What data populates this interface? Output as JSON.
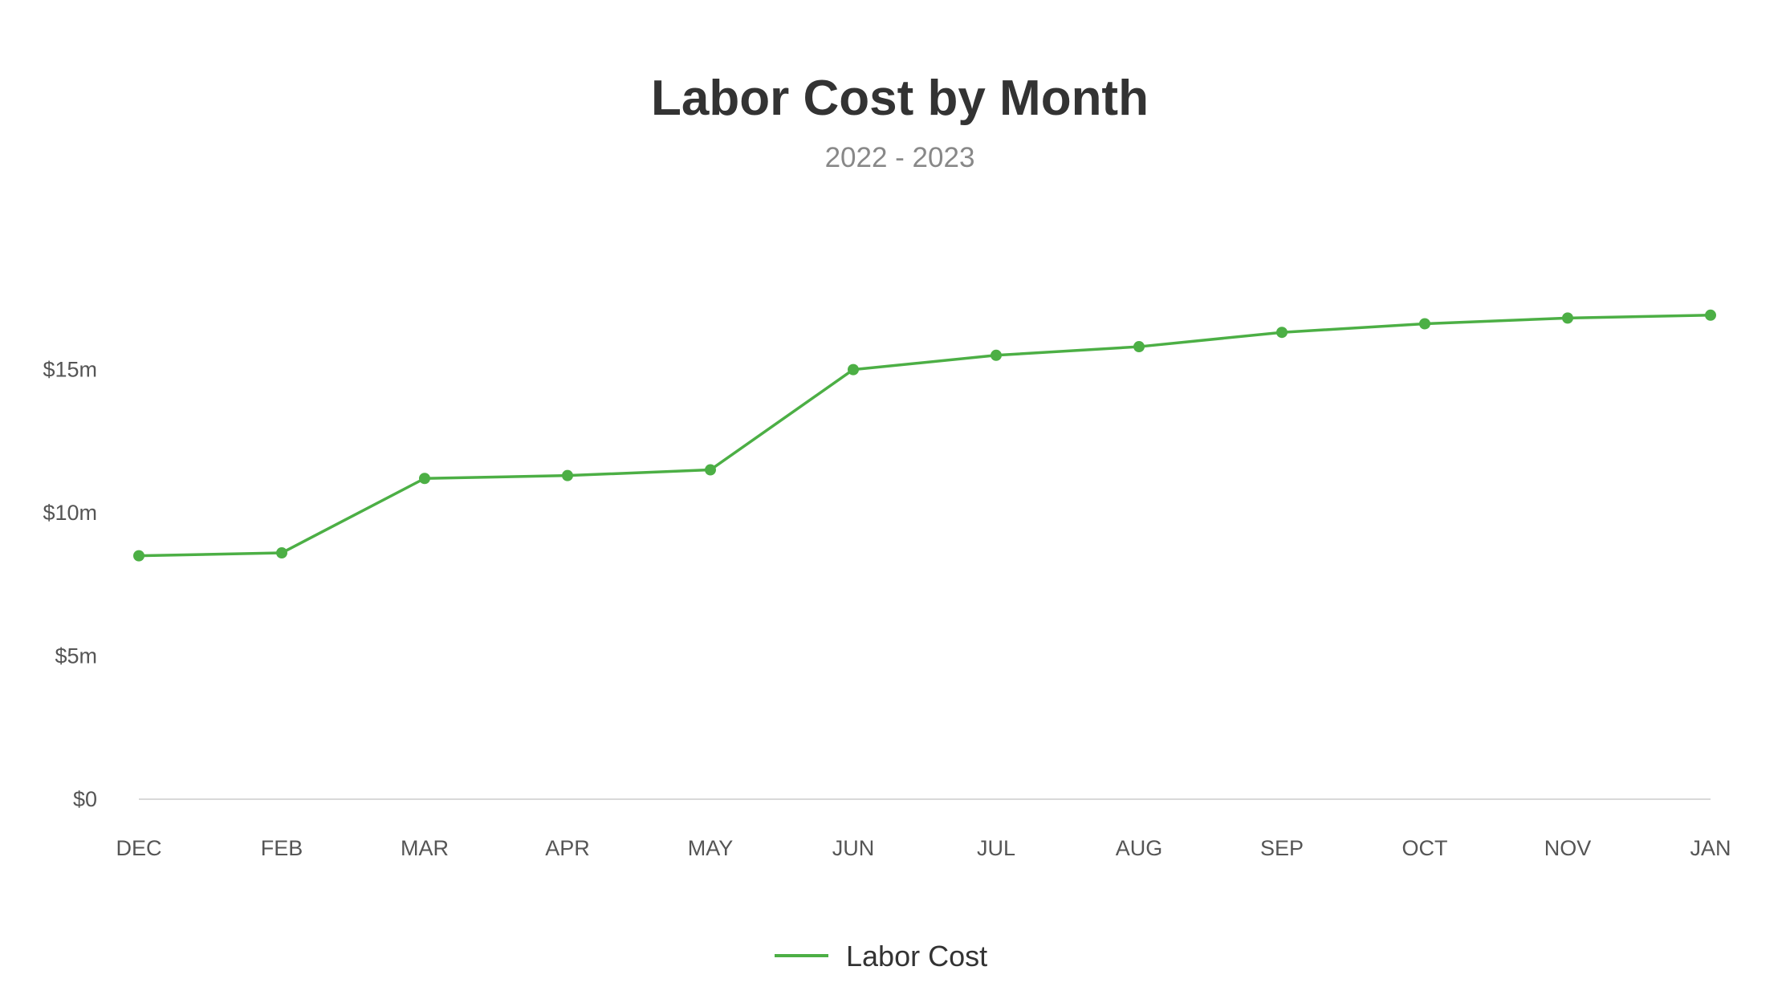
{
  "chart_data": {
    "type": "line",
    "title": "Labor Cost by Month",
    "subtitle": "2022 - 2023",
    "xlabel": "",
    "ylabel": "",
    "categories": [
      "DEC",
      "FEB",
      "MAR",
      "APR",
      "MAY",
      "JUN",
      "JUL",
      "AUG",
      "SEP",
      "OCT",
      "NOV",
      "JAN"
    ],
    "series": [
      {
        "name": "Labor Cost",
        "color": "#4caf45",
        "values": [
          8.5,
          8.6,
          11.2,
          11.3,
          11.5,
          15.0,
          15.5,
          15.8,
          16.3,
          16.6,
          16.8,
          16.9
        ]
      }
    ],
    "y_ticks": [
      {
        "value": 0,
        "label": "$0"
      },
      {
        "value": 5,
        "label": "$5m"
      },
      {
        "value": 10,
        "label": "$10m"
      },
      {
        "value": 15,
        "label": "$15m"
      }
    ],
    "ylim": [
      0,
      19.5
    ],
    "grid": false,
    "legend_position": "bottom-center"
  }
}
